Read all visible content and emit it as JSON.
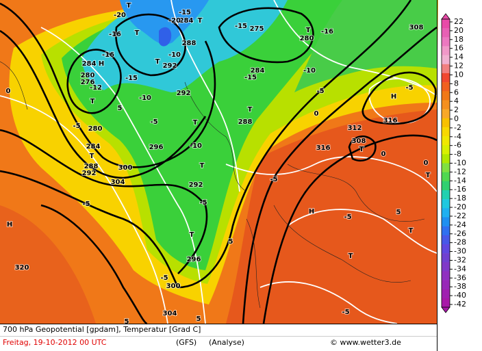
{
  "map": {
    "labels": [
      "-20",
      "T",
      "-15",
      "284",
      "T",
      "-16",
      "T",
      "-20",
      "-15",
      "275",
      "T",
      "280",
      "-16",
      "308",
      "H",
      "284",
      "-16",
      "-10",
      "288",
      "T",
      "292",
      "-15",
      "280",
      "276",
      "-12",
      "T",
      "-10",
      "-15",
      "284",
      "-10",
      "0",
      "5",
      "292",
      "-5",
      "H",
      "-5",
      "T",
      "T",
      "288",
      "280",
      "-5",
      "-5",
      "0",
      "316",
      "312",
      "308",
      "T",
      "0",
      "284",
      "T",
      "296",
      "-10",
      "316",
      "288",
      "292",
      "300",
      "T",
      "-5",
      "304",
      "292",
      "-5",
      "0",
      "T",
      "-5",
      "H",
      "H",
      "-5",
      "5",
      "T",
      "5",
      "T",
      "T",
      "296",
      "320",
      "-5",
      "300",
      "-5",
      "304",
      "5",
      "5"
    ]
  },
  "colorbar": {
    "values": [
      22,
      20,
      18,
      16,
      14,
      12,
      10,
      8,
      6,
      4,
      2,
      0,
      -2,
      -4,
      -6,
      -8,
      -10,
      -12,
      -14,
      -16,
      -18,
      -20,
      -22,
      -24,
      -26,
      -28,
      -30,
      -32,
      -34,
      -36,
      -38,
      -40,
      -42
    ],
    "colors": [
      "#e84aa8",
      "#e860b4",
      "#ec78c0",
      "#f098c8",
      "#f0b0d0",
      "#f08080",
      "#f04830",
      "#f06020",
      "#f07818",
      "#f49020",
      "#f8a828",
      "#f8c000",
      "#f8d800",
      "#f0e800",
      "#d8f000",
      "#b0e800",
      "#80e040",
      "#50d850",
      "#30d070",
      "#20d0b0",
      "#20c8e0",
      "#20b0f0",
      "#2090f0",
      "#3070f0",
      "#4858e8",
      "#6048e0",
      "#7040d0",
      "#8038c8",
      "#9030c0",
      "#9828b8",
      "#a020b0",
      "#a818a8"
    ]
  },
  "footer": {
    "title": "700 hPa Geopotential [gpdam], Temperatur [Grad C]",
    "date": "Freitag, 19-10-2012  00 UTC",
    "model": "(GFS)",
    "run": "(Analyse)",
    "source": "© www.wetter3.de"
  }
}
